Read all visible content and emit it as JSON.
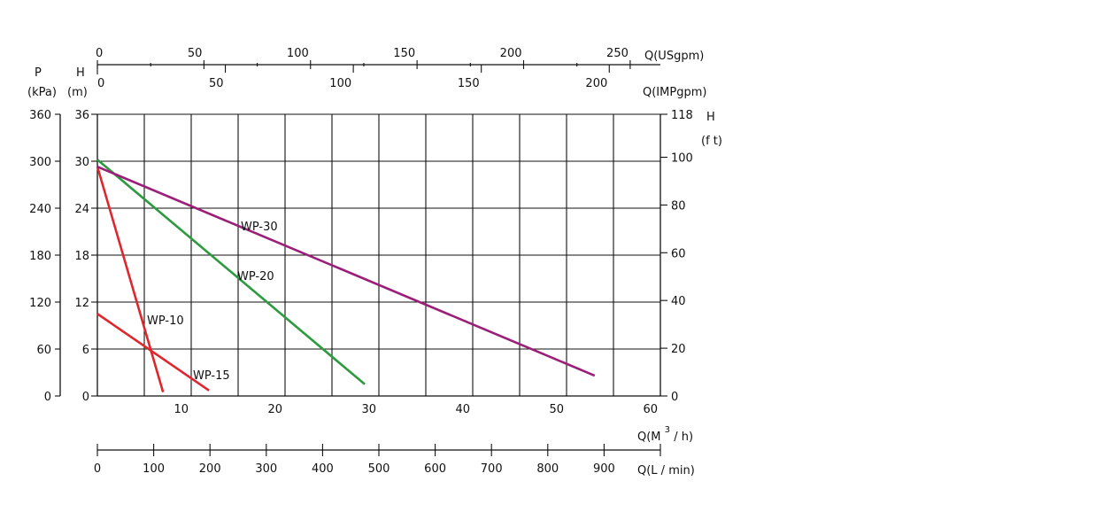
{
  "chart_data": {
    "type": "line",
    "x": {
      "label": "Q(M³/ h)",
      "label_base": "Q(M",
      "label_sup": "3",
      "label_tail": "/ h)",
      "unit": "M3/h",
      "range": [
        0,
        60
      ],
      "ticks": [
        "10",
        "20",
        "30",
        "40",
        "50",
        "60"
      ],
      "grid_step": 5
    },
    "y": {
      "label": "H (m)",
      "label_h": "H",
      "label_unit": "(m)",
      "range": [
        0,
        36
      ],
      "ticks": [
        "0",
        "6",
        "12",
        "18",
        "24",
        "30",
        "36"
      ]
    },
    "pressure_axis": {
      "label_p": "P",
      "label_unit": "(kPa)",
      "ticks": [
        "0",
        "60",
        "120",
        "180",
        "240",
        "300",
        "360"
      ]
    },
    "feet_axis": {
      "label_h": "H",
      "label_unit": "(f t)",
      "ticks": [
        "0",
        "20",
        "40",
        "60",
        "80",
        "100",
        "118"
      ],
      "values": [
        0,
        20,
        40,
        60,
        80,
        100,
        118
      ]
    },
    "usgpm_axis": {
      "label": "Q(USgpm)",
      "ticks": [
        "0",
        "50",
        "100",
        "150",
        "200",
        "250"
      ],
      "values": [
        0,
        50,
        100,
        150,
        200,
        250
      ]
    },
    "impgpm_axis": {
      "label": "Q(IMPgpm)",
      "ticks": [
        "0",
        "50",
        "100",
        "150",
        "200"
      ],
      "values": [
        0,
        50,
        100,
        150,
        200
      ]
    },
    "lmin_axis": {
      "label": "Q(L / min)",
      "ticks": [
        "0",
        "100",
        "200",
        "300",
        "400",
        "500",
        "600",
        "700",
        "800",
        "900"
      ],
      "values": [
        0,
        100,
        200,
        300,
        400,
        500,
        600,
        700,
        800,
        900
      ]
    },
    "series": [
      {
        "name": "WP-10",
        "color": "#e0262d",
        "x": [
          0,
          7.0
        ],
        "y": [
          29.3,
          0.5
        ]
      },
      {
        "name": "WP-15",
        "color": "#e0262d",
        "x": [
          0,
          11.9
        ],
        "y": [
          10.5,
          0.7
        ]
      },
      {
        "name": "WP-20",
        "color": "#2c9a3e",
        "x": [
          0,
          28.5
        ],
        "y": [
          30.2,
          1.5
        ]
      },
      {
        "name": "WP-30",
        "color": "#9b1f78",
        "x": [
          0,
          53.0
        ],
        "y": [
          29.3,
          2.6
        ]
      }
    ]
  }
}
